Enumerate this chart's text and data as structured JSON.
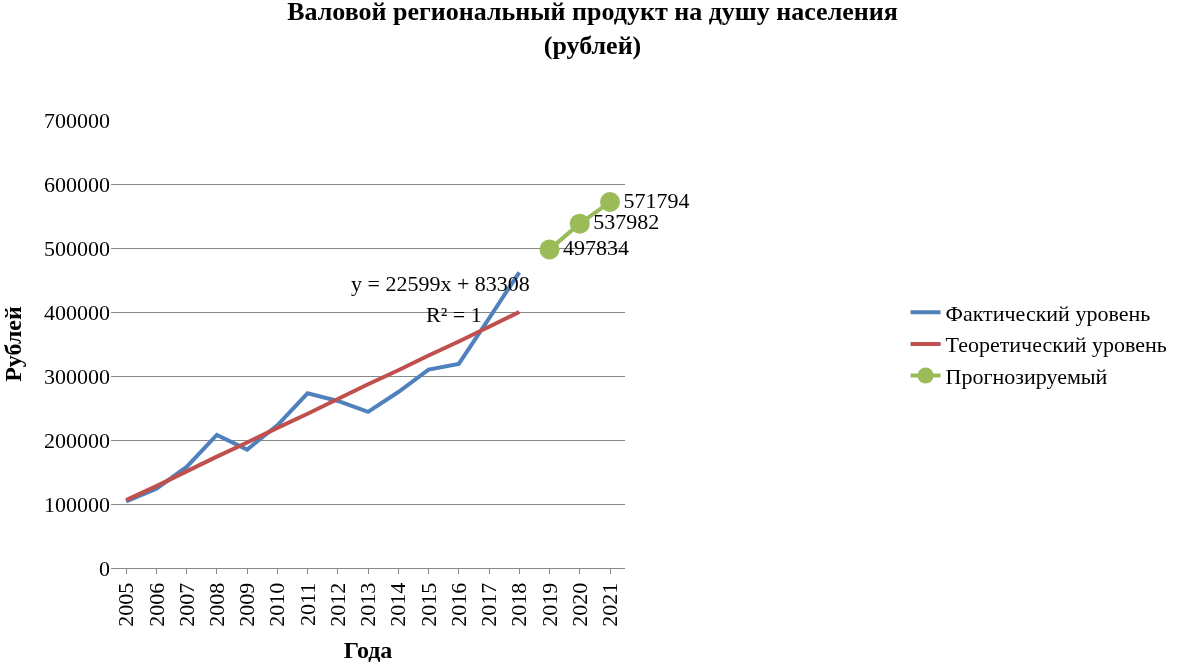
{
  "chart_data": {
    "type": "line",
    "title": "Валовой региональный продукт на душу населения\n(рублей)",
    "xlabel": "Года",
    "ylabel": "Рублей",
    "categories": [
      "2005",
      "2006",
      "2007",
      "2008",
      "2009",
      "2010",
      "2011",
      "2012",
      "2013",
      "2014",
      "2015",
      "2016",
      "2017",
      "2018",
      "2019",
      "2020",
      "2021"
    ],
    "series": [
      {
        "name": "Фактический уровень",
        "color": "#4f81bd",
        "marker": "none",
        "values": [
          104000,
          124000,
          158000,
          208000,
          185000,
          223000,
          273000,
          261000,
          244000,
          275000,
          310000,
          319000,
          390000,
          462000,
          null,
          null,
          null
        ]
      },
      {
        "name": "Теоретический уровень",
        "color": "#c0504d",
        "marker": "none",
        "values": [
          106000,
          128000,
          151000,
          174000,
          196000,
          219000,
          241000,
          264000,
          287000,
          309000,
          332000,
          354000,
          377000,
          400000,
          null,
          null,
          null
        ]
      },
      {
        "name": "Прогнозируемый",
        "color": "#9bbb59",
        "marker": "circle",
        "values": [
          null,
          null,
          null,
          null,
          null,
          null,
          null,
          null,
          null,
          null,
          null,
          null,
          null,
          null,
          497834,
          537982,
          571794
        ],
        "value_labels": [
          null,
          null,
          null,
          null,
          null,
          null,
          null,
          null,
          null,
          null,
          null,
          null,
          null,
          null,
          "497834",
          "537982",
          "571794"
        ]
      }
    ],
    "annotations": [
      "y = 22599x + 83308",
      "R² = 1"
    ],
    "ylim": [
      0,
      700000
    ],
    "yticks": [
      0,
      100000,
      200000,
      300000,
      400000,
      500000,
      600000,
      700000
    ],
    "grid": "y",
    "legend": "right",
    "line_style": "solid"
  }
}
